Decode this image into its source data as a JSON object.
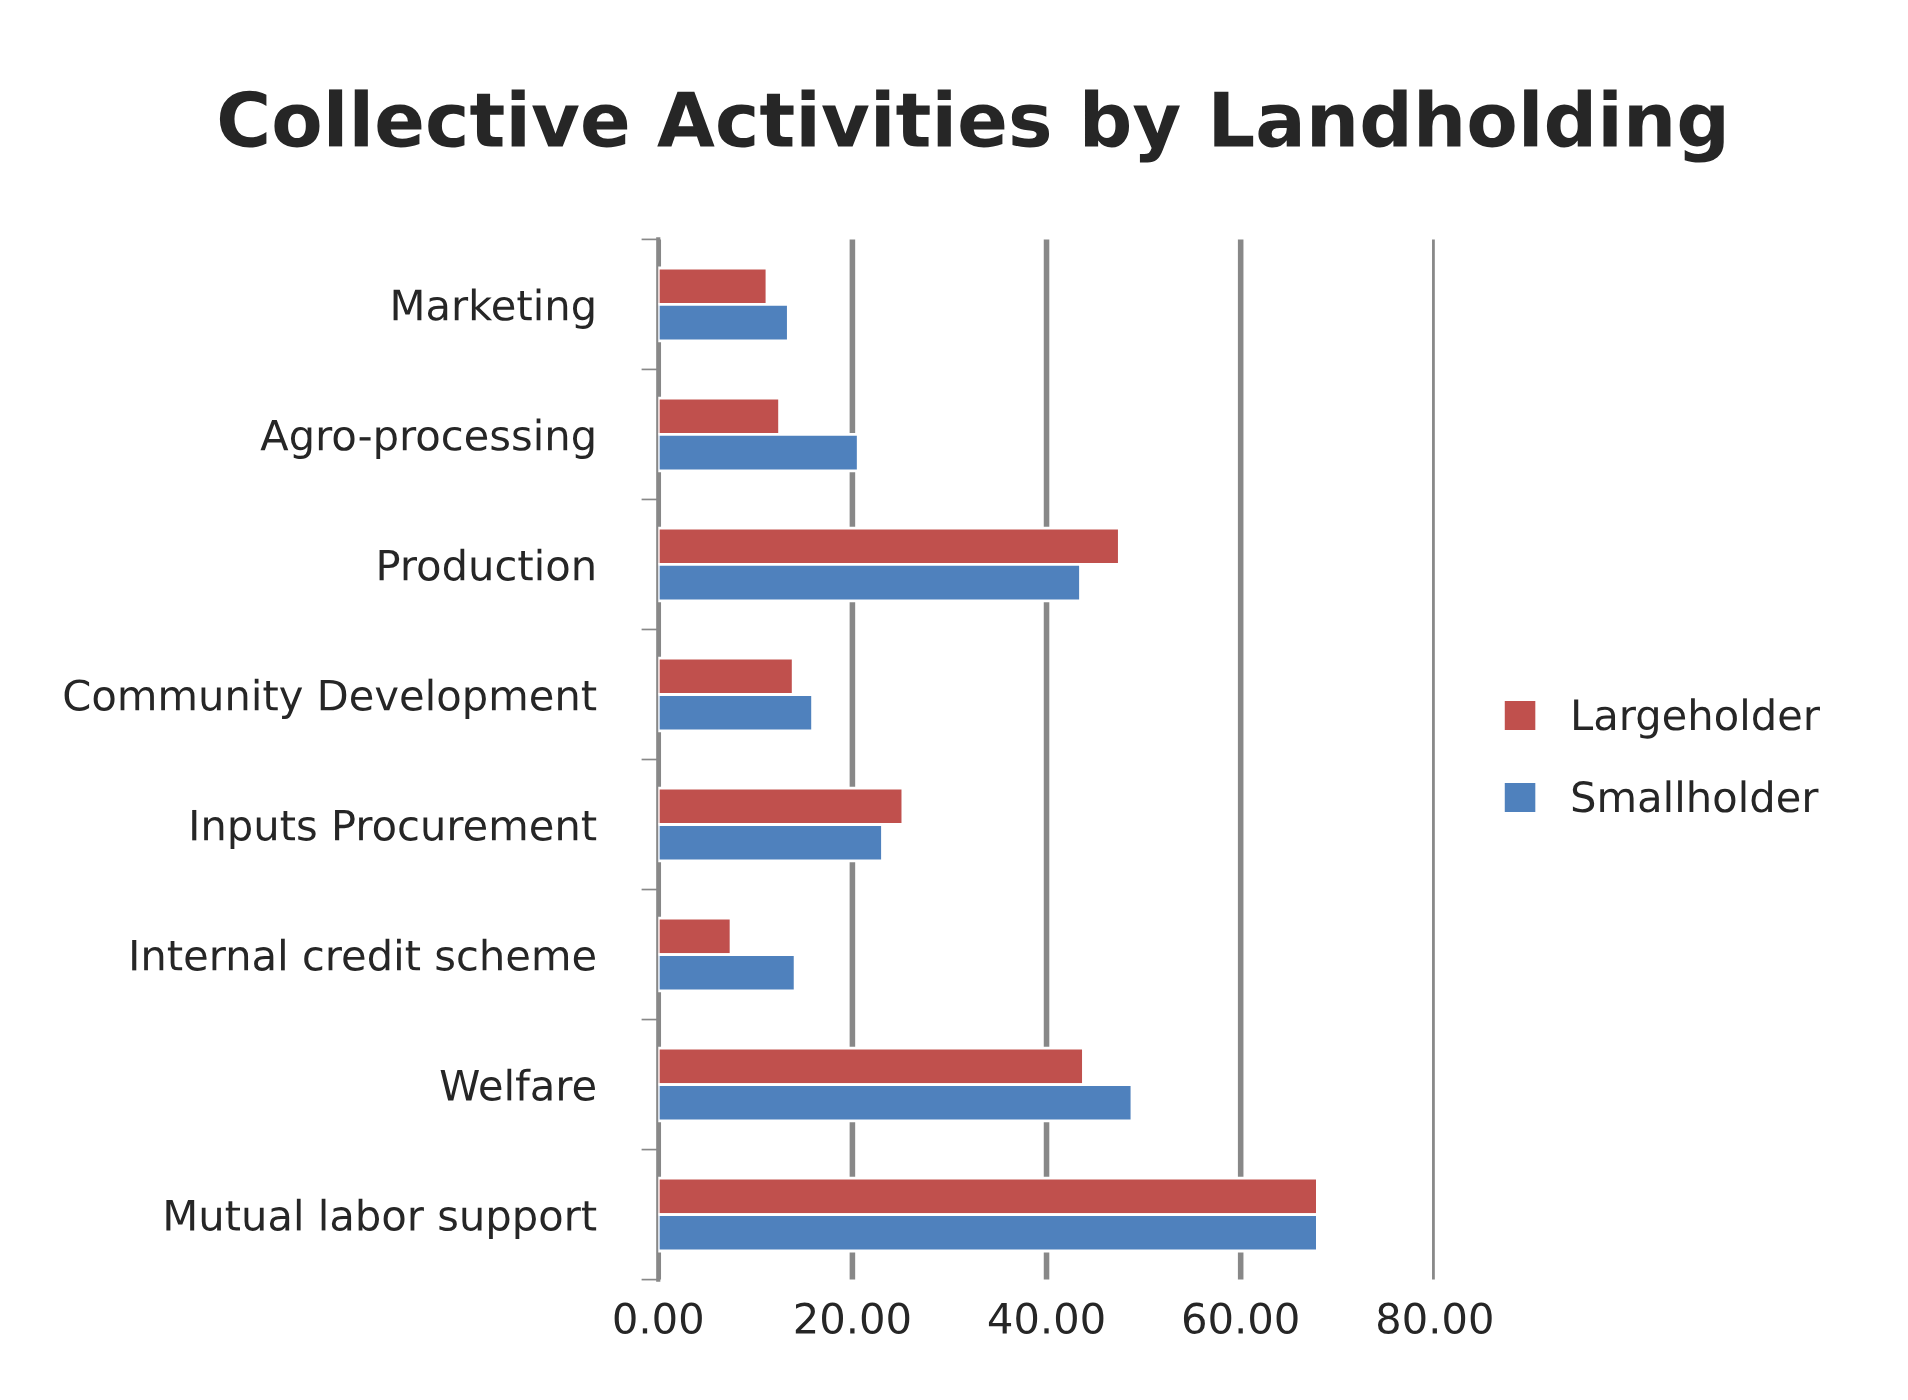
{
  "chart_data": {
    "type": "bar",
    "orientation": "horizontal",
    "title": "Collective Activities by Landholding",
    "categories": [
      "Marketing",
      "Agro-processing",
      "Production",
      "Community Development",
      "Inputs Procurement",
      "Internal credit scheme",
      "Welfare",
      "Mutual labor support"
    ],
    "series": [
      {
        "name": "Largeholder",
        "color": "#c0504d",
        "values": [
          11.2,
          12.5,
          47.5,
          13.9,
          25.2,
          7.5,
          43.8,
          67.9
        ]
      },
      {
        "name": "Smallholder",
        "color": "#4f81bd",
        "values": [
          13.4,
          20.6,
          43.5,
          15.9,
          23.1,
          14.1,
          48.8,
          67.9
        ]
      }
    ],
    "xlim": [
      0,
      80
    ],
    "xticks": [
      {
        "value": 0,
        "label": "0.00"
      },
      {
        "value": 20,
        "label": "20.00"
      },
      {
        "value": 40,
        "label": "40.00"
      },
      {
        "value": 60,
        "label": "60.00"
      },
      {
        "value": 80,
        "label": "80.00"
      }
    ],
    "grid": "x",
    "legend": "right"
  }
}
